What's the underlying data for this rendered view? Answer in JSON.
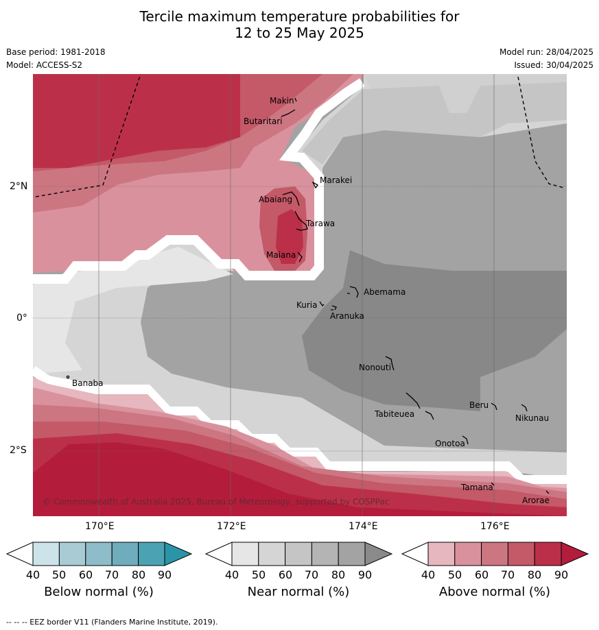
{
  "title_line1": "Tercile maximum temperature probabilities for",
  "title_line2": "12 to 25 May 2025",
  "meta": {
    "base_period": "Base period: 1981-2018",
    "model": "Model: ACCESS-S2",
    "model_run": "Model run: 28/04/2025",
    "issued": "Issued: 30/04/2025"
  },
  "axes": {
    "lat_ticks": [
      "2°N",
      "0°",
      "2°S"
    ],
    "lon_ticks": [
      "170°E",
      "172°E",
      "174°E",
      "176°E"
    ]
  },
  "places": [
    {
      "name": "Makin"
    },
    {
      "name": "Butaritari"
    },
    {
      "name": "Marakei"
    },
    {
      "name": "Abaiang"
    },
    {
      "name": "Tarawa"
    },
    {
      "name": "Maiana"
    },
    {
      "name": "Abemama"
    },
    {
      "name": "Kuria"
    },
    {
      "name": "Aranuka"
    },
    {
      "name": "Banaba"
    },
    {
      "name": "Nonouti"
    },
    {
      "name": "Beru"
    },
    {
      "name": "Tabiteuea"
    },
    {
      "name": "Nikunau"
    },
    {
      "name": "Onotoa"
    },
    {
      "name": "Tamana"
    },
    {
      "name": "Arorae"
    }
  ],
  "copyright": "© Commonwealth of Australia 2025, Bureau of Meteorology, supported by COSPPac",
  "colorbars": [
    {
      "label": "Below normal (%)",
      "ticks": [
        "40",
        "50",
        "60",
        "70",
        "80",
        "90"
      ],
      "colors": [
        "#ffffff",
        "#cde3ea",
        "#a9ccd4",
        "#8ebcc8",
        "#6fadbd",
        "#4ba2b2",
        "#2b95a8"
      ]
    },
    {
      "label": "Near normal (%)",
      "ticks": [
        "40",
        "50",
        "60",
        "70",
        "80",
        "90"
      ],
      "colors": [
        "#ffffff",
        "#e6e6e6",
        "#d5d5d5",
        "#c5c5c5",
        "#b4b4b4",
        "#a3a3a3",
        "#8a8a8a"
      ]
    },
    {
      "label": "Above normal (%)",
      "ticks": [
        "40",
        "50",
        "60",
        "70",
        "80",
        "90"
      ],
      "colors": [
        "#ffffff",
        "#e6b7bf",
        "#d9929d",
        "#cc7682",
        "#c45968",
        "#bb3048",
        "#b41c3c"
      ]
    }
  ],
  "footer": "--  --  -- EEZ border V11 (Flanders Marine Institute, 2019)."
}
